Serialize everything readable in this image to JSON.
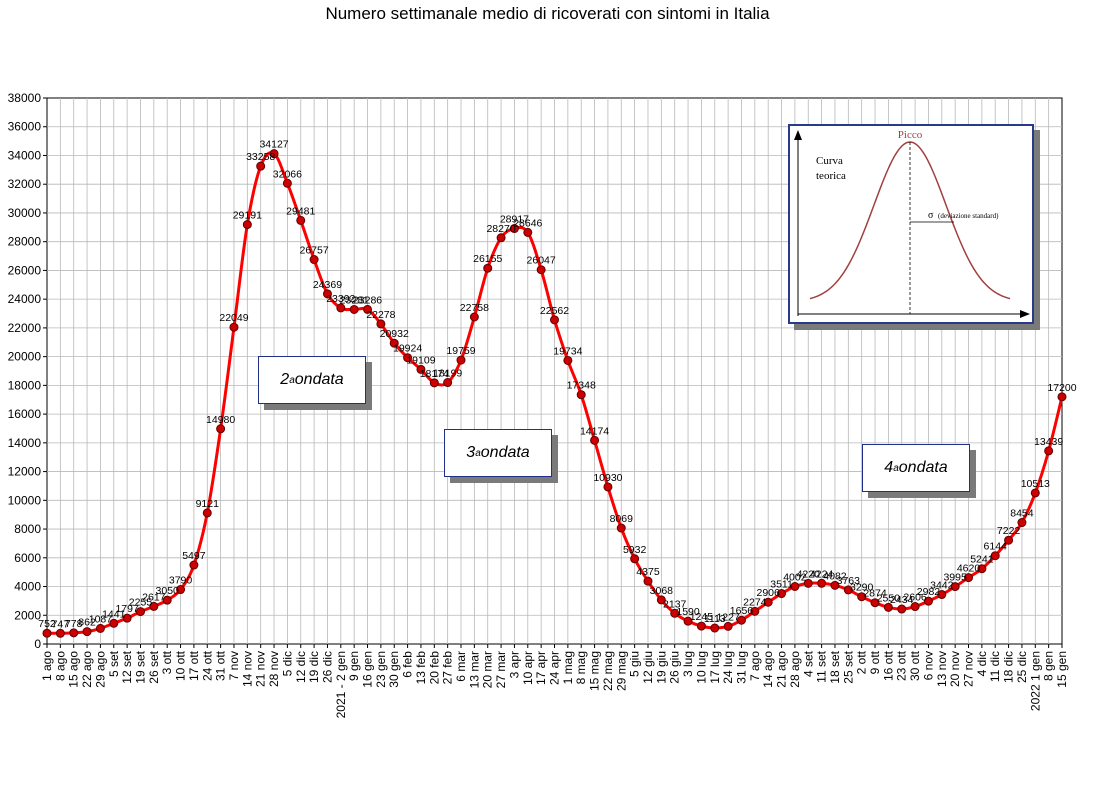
{
  "chart_data": {
    "type": "line",
    "title": "Numero settimanale medio di ricoverati con sintomi in Italia",
    "ylim": [
      0,
      38000
    ],
    "ytick_step": 2000,
    "grid": true,
    "line_color": "#ff0000",
    "marker_color": "#cc0000",
    "categories": [
      "1 ago",
      "8 ago",
      "15 ago",
      "22 ago",
      "29 ago",
      "5 set",
      "12 set",
      "19 set",
      "26 set",
      "3 ott",
      "10 ott",
      "17 ott",
      "24 ott",
      "31 ott",
      "7 nov",
      "14 nov",
      "21 nov",
      "28 nov",
      "5 dic",
      "12 dic",
      "19 dic",
      "26 dic",
      "2021 - 2 gen",
      "9 gen",
      "16 gen",
      "23 gen",
      "30 gen",
      "6 feb",
      "13 feb",
      "20 feb",
      "27 feb",
      "6 mar",
      "13 mar",
      "20 mar",
      "27 mar",
      "3 apr",
      "10 apr",
      "17 apr",
      "24 apr",
      "1 mag",
      "8 mag",
      "15 mag",
      "22 mag",
      "29 mag",
      "5 giu",
      "12 giu",
      "19 giu",
      "26 giu",
      "3 lug",
      "10 lug",
      "17 lug",
      "24 lug",
      "31 lug",
      "7 ago",
      "14 ago",
      "21 ago",
      "28 ago",
      "4 set",
      "11 set",
      "18 set",
      "25 set",
      "2 ott",
      "9 ott",
      "16 ott",
      "23 ott",
      "30 ott",
      "6 nov",
      "13 nov",
      "20 nov",
      "27 nov",
      "4 dic",
      "11 dic",
      "18 dic",
      "25 dic",
      "2022 1 gen",
      "8 gen",
      "15 gen"
    ],
    "values": [
      752,
      747,
      778,
      862,
      1087,
      1441,
      1797,
      2255,
      2617,
      3050,
      3790,
      5497,
      9121,
      14980,
      22049,
      29191,
      33258,
      34127,
      32066,
      29481,
      26757,
      24369,
      23392,
      23281,
      23286,
      22278,
      20932,
      19924,
      19109,
      18174,
      18199,
      19759,
      22758,
      26155,
      28270,
      28917,
      28646,
      26047,
      22562,
      19734,
      17348,
      14174,
      10930,
      8069,
      5932,
      4375,
      3068,
      2137,
      1590,
      1245,
      1113,
      1227,
      1656,
      2274,
      2906,
      3511,
      4002,
      4220,
      4224,
      4082,
      3763,
      3290,
      2874,
      2550,
      2434,
      2606,
      2982,
      3442,
      3995,
      4620,
      5241,
      6144,
      7222,
      8454,
      10513,
      13439,
      17200
    ],
    "value_labels": [
      "752",
      "747",
      "778",
      "862",
      "1087",
      "1441",
      "1797",
      "2255",
      "2617",
      "3050",
      "3790",
      "5497",
      "9121",
      "14980",
      "22049",
      "29191",
      "33258",
      "34127",
      "32066",
      "29481",
      "26757",
      "24369",
      "23392",
      "23281",
      "23286",
      "22278",
      "20932",
      "19924",
      "19109",
      "18174",
      "18199",
      "19759",
      "22758",
      "26155",
      "28270",
      "28917",
      "28646",
      "26047",
      "22562",
      "19734",
      "17348",
      "14174",
      "10930",
      "8069",
      "5932",
      "4375",
      "3068",
      "2137",
      "1590",
      "1245",
      "1113",
      "1227",
      "1656",
      "2274",
      "2906",
      "3511",
      "4002",
      "4220",
      "4224",
      "4082",
      "3763",
      "3290",
      "2874",
      "2550",
      "2434",
      "2606",
      "2982",
      "3442",
      "3995",
      "4620",
      "5241",
      "6144",
      "7222",
      "8454",
      "10513",
      "13439",
      "17200"
    ]
  },
  "annotations": [
    {
      "name": "ondata-2",
      "num": "2",
      "sup": "a",
      "text": " ondata"
    },
    {
      "name": "ondata-3",
      "num": "3",
      "sup": "a",
      "text": " ondata"
    },
    {
      "name": "ondata-4",
      "num": "4",
      "sup": "a",
      "text": " ondata"
    }
  ],
  "inset": {
    "peak_label": "Picco",
    "curve_label_1": "Curva",
    "curve_label_2": "teorica",
    "sigma_symbol": "σ",
    "sigma_text": "(deviazione standard)",
    "curve_color": "#a04040",
    "peak_color": "#a04040"
  }
}
